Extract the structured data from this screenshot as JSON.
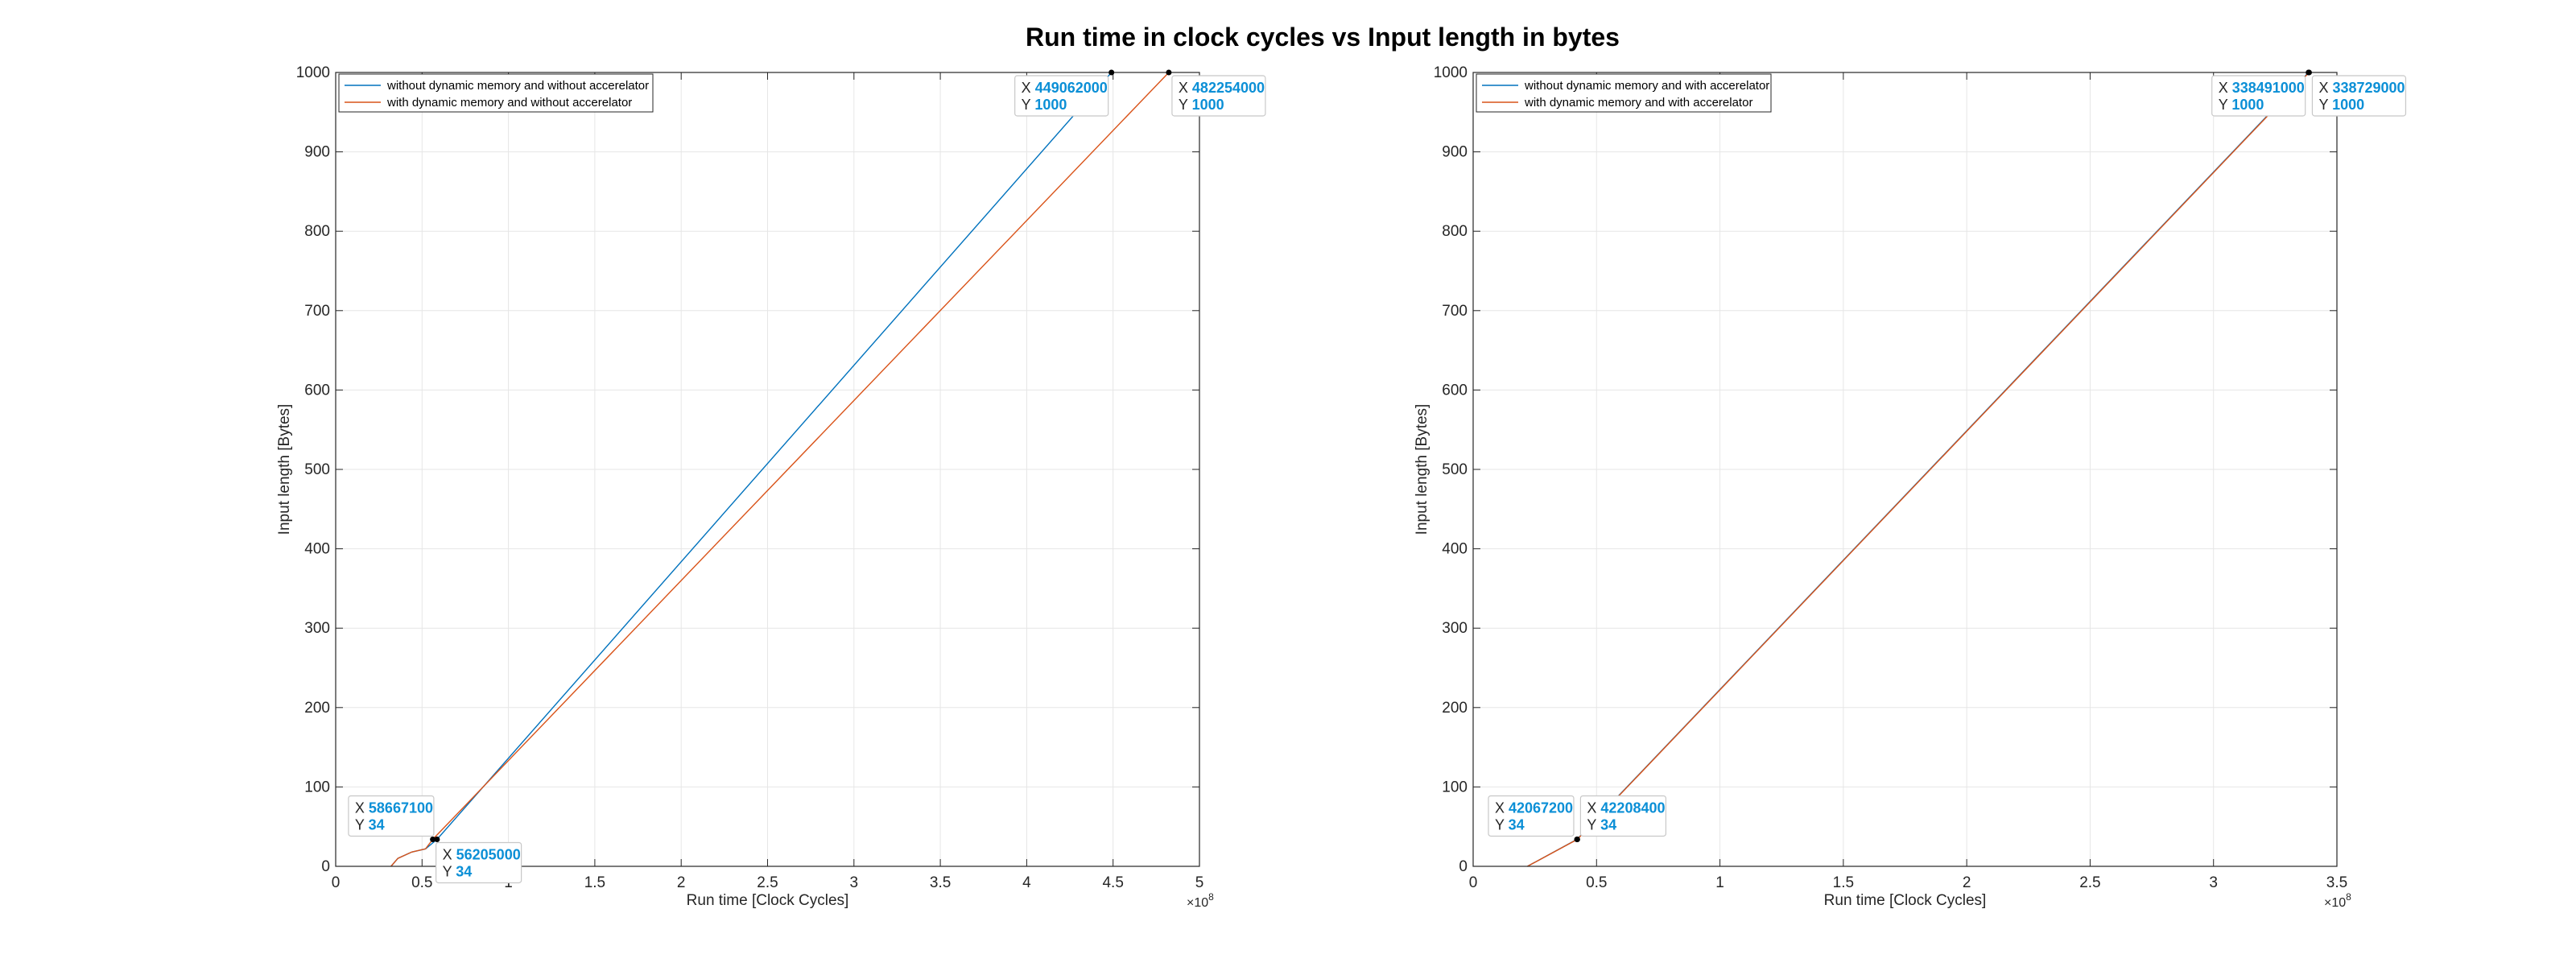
{
  "figure_title": "Run time in clock cycles vs Input length in bytes",
  "chart_data": [
    {
      "type": "line",
      "xlabel": "Run time [Clock Cycles]",
      "ylabel": "Input length [Bytes]",
      "x_exponent_label": "×10",
      "x_exponent_power": "8",
      "x_scale": 100000000,
      "xlim": [
        0,
        5
      ],
      "ylim": [
        0,
        1000
      ],
      "x_ticks": [
        "0",
        "0.5",
        "1",
        "1.5",
        "2",
        "2.5",
        "3",
        "3.5",
        "4",
        "4.5",
        "5"
      ],
      "y_ticks": [
        "0",
        "100",
        "200",
        "300",
        "400",
        "500",
        "600",
        "700",
        "800",
        "900",
        "1000"
      ],
      "grid": true,
      "legend_position": "top-left",
      "series": [
        {
          "name": "without dynamic memory and without accerelator",
          "color": "#0072bd",
          "points": [
            [
              0.32,
              0
            ],
            [
              0.36,
              10
            ],
            [
              0.44,
              18
            ],
            [
              0.52,
              22
            ],
            [
              0.586671,
              34
            ],
            [
              4.49062,
              1000
            ]
          ]
        },
        {
          "name": "with dynamic memory and without accerelator",
          "color": "#d95319",
          "points": [
            [
              0.32,
              0
            ],
            [
              0.36,
              10
            ],
            [
              0.44,
              18
            ],
            [
              0.52,
              22
            ],
            [
              0.56205,
              34
            ],
            [
              4.82254,
              1000
            ]
          ]
        }
      ],
      "datatips": [
        {
          "x_key": "X",
          "x_value": "58667100",
          "y_key": "Y",
          "y_value": "34",
          "x": 0.586671,
          "y": 34,
          "side": "upper-left"
        },
        {
          "x_key": "X",
          "x_value": "56205000",
          "y_key": "Y",
          "y_value": "34",
          "x": 0.56205,
          "y": 34,
          "side": "lower-right"
        },
        {
          "x_key": "X",
          "x_value": "449062000",
          "y_key": "Y",
          "y_value": "1000",
          "x": 4.49062,
          "y": 1000,
          "side": "lower-left"
        },
        {
          "x_key": "X",
          "x_value": "482254000",
          "y_key": "Y",
          "y_value": "1000",
          "x": 4.82254,
          "y": 1000,
          "side": "lower-right"
        }
      ]
    },
    {
      "type": "line",
      "xlabel": "Run time [Clock Cycles]",
      "ylabel": "Input length [Bytes]",
      "x_exponent_label": "×10",
      "x_exponent_power": "8",
      "x_scale": 100000000,
      "xlim": [
        0,
        3.5
      ],
      "ylim": [
        0,
        1000
      ],
      "x_ticks": [
        "0",
        "0.5",
        "1",
        "1.5",
        "2",
        "2.5",
        "3",
        "3.5"
      ],
      "y_ticks": [
        "0",
        "100",
        "200",
        "300",
        "400",
        "500",
        "600",
        "700",
        "800",
        "900",
        "1000"
      ],
      "grid": true,
      "legend_position": "top-left",
      "series": [
        {
          "name": "without dynamic memory and with accerelator",
          "color": "#0072bd",
          "points": [
            [
              0.22,
              0
            ],
            [
              0.420672,
              34
            ],
            [
              3.38491,
              1000
            ]
          ]
        },
        {
          "name": "with dynamic memory and with accerelator",
          "color": "#d95319",
          "points": [
            [
              0.22,
              0
            ],
            [
              0.422084,
              34
            ],
            [
              3.38729,
              1000
            ]
          ]
        }
      ],
      "datatips": [
        {
          "x_key": "X",
          "x_value": "42067200",
          "y_key": "Y",
          "y_value": "34",
          "x": 0.420672,
          "y": 34,
          "side": "upper-left"
        },
        {
          "x_key": "X",
          "x_value": "42208400",
          "y_key": "Y",
          "y_value": "34",
          "x": 0.422084,
          "y": 34,
          "side": "upper-right"
        },
        {
          "x_key": "X",
          "x_value": "338491000",
          "y_key": "Y",
          "y_value": "1000",
          "x": 3.38491,
          "y": 1000,
          "side": "lower-left"
        },
        {
          "x_key": "X",
          "x_value": "338729000",
          "y_key": "Y",
          "y_value": "1000",
          "x": 3.38729,
          "y": 1000,
          "side": "lower-right"
        }
      ]
    }
  ]
}
